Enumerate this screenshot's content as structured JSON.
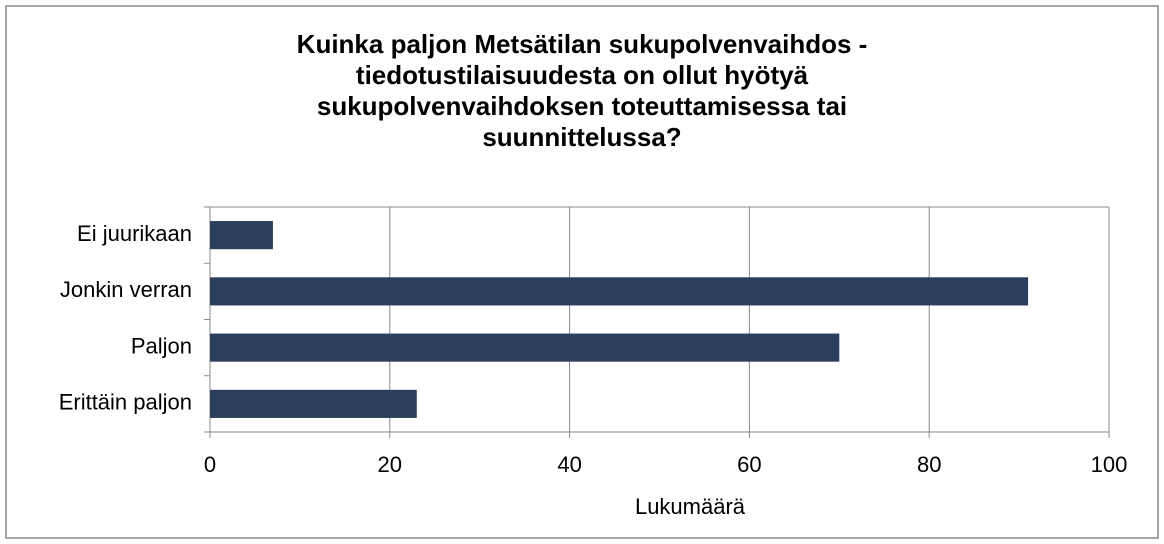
{
  "chart_data": {
    "type": "bar",
    "orientation": "horizontal",
    "title": "Kuinka paljon Metsätilan sukupolvenvaihdos - tiedotustilaisuudesta on ollut hyötyä sukupolvenvaihdoksen toteuttamisessa tai suunnittelussa?",
    "categories": [
      "Ei juurikaan",
      "Jonkin verran",
      "Paljon",
      "Erittäin paljon"
    ],
    "values": [
      7,
      91,
      70,
      23
    ],
    "color": "#2c3e5d",
    "xlabel": "Lukumäärä",
    "xlim": [
      0,
      100
    ],
    "xticks": [
      0,
      20,
      40,
      60,
      80,
      100
    ],
    "grid": true
  }
}
